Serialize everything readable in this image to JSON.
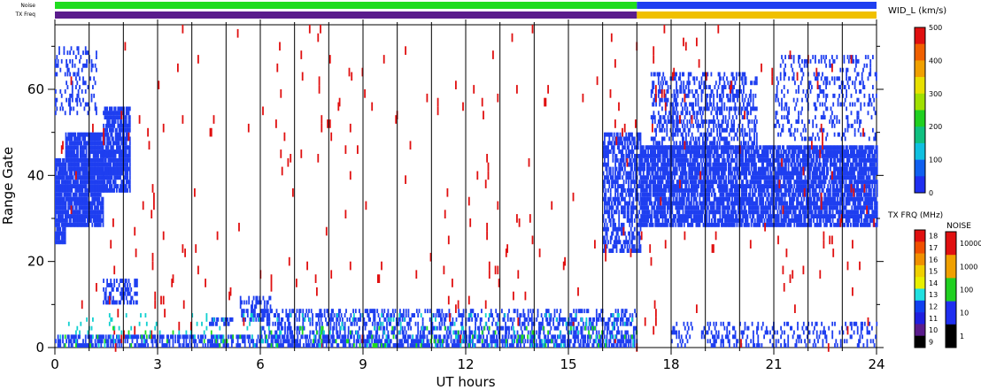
{
  "chart_data": {
    "type": "heatmap",
    "xlabel": "UT hours",
    "ylabel": "Range Gate",
    "xlim": [
      0,
      24
    ],
    "ylim": [
      0,
      75
    ],
    "xticks": [
      0,
      3,
      6,
      9,
      12,
      15,
      18,
      21,
      24
    ],
    "yticks": [
      0,
      20,
      40,
      60
    ],
    "hour_lines": [
      1,
      2,
      3,
      4,
      5,
      6,
      7,
      8,
      9,
      10,
      11,
      12,
      13,
      14,
      15,
      16,
      17,
      18,
      19,
      20,
      21,
      22,
      23
    ],
    "status_bars": [
      {
        "name": "Noise",
        "segments": [
          {
            "from": 0,
            "to": 17,
            "color": "#1fdc1f"
          },
          {
            "from": 17,
            "to": 24,
            "color": "#1f3ff0"
          }
        ]
      },
      {
        "name": "TX Freq",
        "segments": [
          {
            "from": 0,
            "to": 17,
            "color": "#5a1c8c"
          },
          {
            "from": 17,
            "to": 24,
            "color": "#f0c000"
          }
        ]
      }
    ],
    "scatter_regions": [
      {
        "t0": 0.0,
        "t1": 0.3,
        "g0": 24,
        "g1": 44,
        "density": 0.9,
        "color": "#1f3ff0"
      },
      {
        "t0": 0.3,
        "t1": 1.4,
        "g0": 28,
        "g1": 50,
        "density": 0.9,
        "color": "#1f3ff0"
      },
      {
        "t0": 1.4,
        "t1": 2.2,
        "g0": 36,
        "g1": 56,
        "density": 0.85,
        "color": "#1f3ff0"
      },
      {
        "t0": 0.0,
        "t1": 1.2,
        "g0": 54,
        "g1": 70,
        "density": 0.25,
        "color": "#1f3ff0"
      },
      {
        "t0": 1.4,
        "t1": 2.4,
        "g0": 10,
        "g1": 16,
        "density": 0.5,
        "color": "#1f3ff0"
      },
      {
        "t0": 5.4,
        "t1": 6.3,
        "g0": 6,
        "g1": 12,
        "density": 0.5,
        "color": "#1f3ff0"
      },
      {
        "t0": 4.5,
        "t1": 5.2,
        "g0": 5,
        "g1": 7,
        "density": 0.5,
        "color": "#1f3ff0"
      },
      {
        "t0": 0.0,
        "t1": 17.0,
        "g0": 0,
        "g1": 3,
        "density": 0.6,
        "color": "#1f3ff0"
      },
      {
        "t0": 6.0,
        "t1": 17.0,
        "g0": 3,
        "g1": 9,
        "density": 0.35,
        "color": "#1f3ff0"
      },
      {
        "t0": 16.0,
        "t1": 17.1,
        "g0": 22,
        "g1": 50,
        "density": 0.6,
        "color": "#1f3ff0"
      },
      {
        "t0": 17.1,
        "t1": 24.0,
        "g0": 28,
        "g1": 47,
        "density": 0.8,
        "color": "#1f3ff0"
      },
      {
        "t0": 17.4,
        "t1": 20.5,
        "g0": 46,
        "g1": 64,
        "density": 0.4,
        "color": "#1f3ff0"
      },
      {
        "t0": 18.0,
        "t1": 24.0,
        "g0": 0,
        "g1": 6,
        "density": 0.25,
        "color": "#1f3ff0"
      },
      {
        "t0": 21.0,
        "t1": 24.0,
        "g0": 48,
        "g1": 68,
        "density": 0.2,
        "color": "#1f3ff0"
      },
      {
        "t0": 0.0,
        "t1": 24.0,
        "g0": 0,
        "g1": 75,
        "density": 0.006,
        "color": "#e01010"
      },
      {
        "t0": 0.0,
        "t1": 17.0,
        "g0": 0,
        "g1": 8,
        "density": 0.05,
        "color": "#10d0d0"
      },
      {
        "t0": 0.0,
        "t1": 17.0,
        "g0": 0,
        "g1": 5,
        "density": 0.03,
        "color": "#1fdc1f"
      }
    ],
    "colorbars": [
      {
        "label": "WID_L (km/s)",
        "ticks": [
          "500",
          "400",
          "300",
          "200",
          "100",
          "0"
        ],
        "colors": [
          "#e01010",
          "#f06000",
          "#f0a000",
          "#e8e000",
          "#a0e000",
          "#20d020",
          "#10c080",
          "#10c0e0",
          "#1060f0",
          "#1f2ff0"
        ]
      },
      {
        "label": "TX FRQ (MHz)",
        "ticks": [
          "18",
          "17",
          "16",
          "15",
          "14",
          "13",
          "12",
          "11",
          "10",
          "9"
        ],
        "colors": [
          "#e01010",
          "#f05000",
          "#f09000",
          "#f0d000",
          "#e8f000",
          "#20e0e0",
          "#1040f0",
          "#1f1fe0",
          "#5a1c8c",
          "#000000"
        ]
      },
      {
        "label": "NOISE",
        "ticks": [
          "10000",
          "1000",
          "100",
          "10",
          "1"
        ],
        "colors": [
          "#e01010",
          "#f0a000",
          "#20d020",
          "#1f2ff0",
          "#000000"
        ]
      }
    ],
    "grid": true
  }
}
